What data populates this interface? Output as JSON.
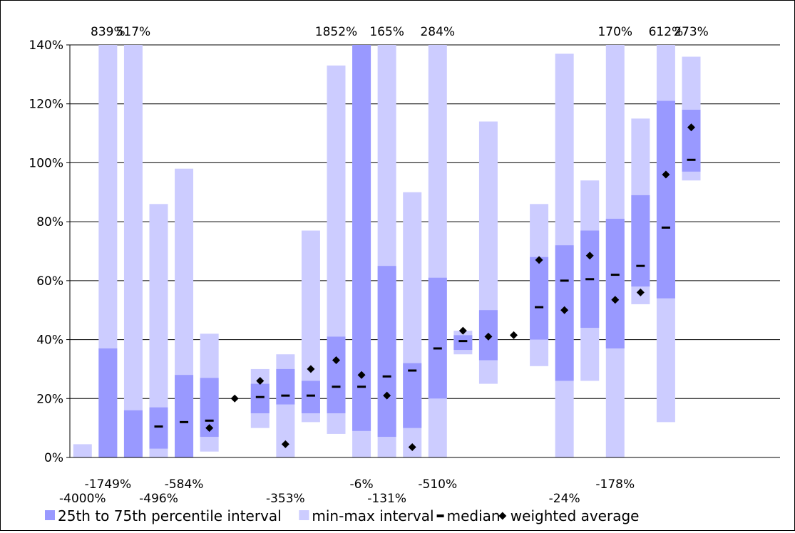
{
  "chart_data": {
    "type": "bar",
    "title": "",
    "xlabel": "",
    "ylabel": "",
    "ylim": [
      0,
      140
    ],
    "y_ticks": [
      "0%",
      "20%",
      "40%",
      "60%",
      "80%",
      "100%",
      "120%",
      "140%"
    ],
    "y_tick_values": [
      0,
      20,
      40,
      60,
      80,
      100,
      120,
      140
    ],
    "grid": true,
    "legend_placement": "bottom",
    "colors": {
      "iqr": "#9999ff",
      "minmax": "#ccccff",
      "marker": "#000000"
    },
    "legend": [
      {
        "label": "25th to 75th percentile interval",
        "symbol": "iqr"
      },
      {
        "label": "min-max interval",
        "symbol": "minmax"
      },
      {
        "label": "median",
        "symbol": "dash"
      },
      {
        "label": "weighted average",
        "symbol": "diamond"
      }
    ],
    "n_categories": 28,
    "series": [
      {
        "name": "min-max interval",
        "kind": "range",
        "values": [
          [
            0,
            4.5
          ],
          [
            0,
            141
          ],
          [
            0,
            141
          ],
          [
            0,
            86
          ],
          [
            0,
            98
          ],
          [
            2,
            42
          ],
          null,
          [
            10,
            30
          ],
          [
            0,
            35
          ],
          [
            12,
            77
          ],
          [
            8,
            133
          ],
          [
            0,
            141
          ],
          [
            0,
            141
          ],
          [
            0,
            90
          ],
          [
            0,
            141
          ],
          [
            35,
            43
          ],
          [
            25,
            114
          ],
          null,
          [
            31,
            86
          ],
          [
            0,
            137
          ],
          [
            26,
            94
          ],
          [
            0,
            141
          ],
          [
            52,
            115
          ],
          [
            12,
            141
          ],
          [
            94,
            136
          ],
          null,
          null,
          null
        ]
      },
      {
        "name": "25th to 75th percentile interval",
        "kind": "range",
        "values": [
          null,
          [
            0,
            37
          ],
          [
            0,
            16
          ],
          [
            3,
            17
          ],
          [
            0,
            28
          ],
          [
            7,
            27
          ],
          null,
          [
            15,
            25
          ],
          [
            18,
            30
          ],
          [
            15,
            26
          ],
          [
            15,
            41
          ],
          [
            9,
            141
          ],
          [
            7,
            65
          ],
          [
            10,
            32
          ],
          [
            20,
            61
          ],
          [
            36.5,
            41.5
          ],
          [
            33,
            50
          ],
          null,
          [
            40,
            68
          ],
          [
            26,
            72
          ],
          [
            44,
            77
          ],
          [
            37,
            81
          ],
          [
            58,
            89
          ],
          [
            54,
            121
          ],
          [
            97,
            118
          ],
          null,
          null,
          null
        ]
      },
      {
        "name": "median",
        "kind": "point",
        "values": [
          null,
          null,
          null,
          10.5,
          12,
          12.5,
          null,
          20.5,
          21,
          21,
          24,
          24,
          27.5,
          29.5,
          37,
          39.5,
          null,
          null,
          51,
          60,
          60.5,
          62,
          65,
          78,
          101,
          null,
          null,
          null
        ]
      },
      {
        "name": "weighted average",
        "kind": "point",
        "values": [
          null,
          null,
          null,
          null,
          null,
          10,
          20,
          26,
          4.5,
          30,
          33,
          28,
          21,
          3.5,
          null,
          43,
          41,
          41.5,
          67,
          50,
          68.5,
          53.5,
          56,
          96,
          112,
          null,
          null,
          null
        ]
      }
    ],
    "annotations": [
      {
        "text": "839%",
        "category": 1,
        "position": "top"
      },
      {
        "text": "517%",
        "category": 2,
        "position": "top"
      },
      {
        "text": "1852%",
        "category": 10,
        "position": "top"
      },
      {
        "text": "165%",
        "category": 12,
        "position": "top"
      },
      {
        "text": "284%",
        "category": 14,
        "position": "top"
      },
      {
        "text": "170%",
        "category": 21,
        "position": "top"
      },
      {
        "text": "612%",
        "category": 23,
        "position": "top"
      },
      {
        "text": "273%",
        "category": 24,
        "position": "top"
      },
      {
        "text": "-1749%",
        "category": 1,
        "position": "below-1"
      },
      {
        "text": "-584%",
        "category": 4,
        "position": "below-1"
      },
      {
        "text": "-6%",
        "category": 11,
        "position": "below-1"
      },
      {
        "text": "-510%",
        "category": 14,
        "position": "below-1"
      },
      {
        "text": "-178%",
        "category": 21,
        "position": "below-1"
      },
      {
        "text": "-4000%",
        "category": 0,
        "position": "below-2"
      },
      {
        "text": "-496%",
        "category": 3,
        "position": "below-2"
      },
      {
        "text": "-131%",
        "category": 12,
        "position": "below-2"
      },
      {
        "text": "-24%",
        "category": 19,
        "position": "below-2"
      },
      {
        "text": "-353%",
        "category": 8,
        "position": "below-3"
      }
    ]
  }
}
